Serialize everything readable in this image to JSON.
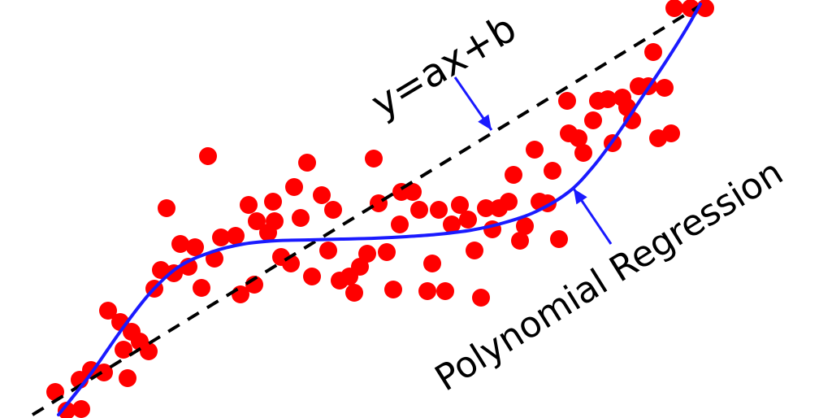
{
  "chart_data": {
    "type": "scatter",
    "title": "",
    "xlabel": "",
    "ylabel": "",
    "grid": false,
    "colors": {
      "points": "#ff0000",
      "linear_fit": "#000000",
      "polynomial_fit": "#1a1aff",
      "arrows": "#1a1aff",
      "text": "#000000"
    },
    "points": [
      [
        68,
        482
      ],
      [
        82,
        505
      ],
      [
        100,
        503
      ],
      [
        98,
        467
      ],
      [
        112,
        455
      ],
      [
        128,
        458
      ],
      [
        157,
        465
      ],
      [
        133,
        382
      ],
      [
        148,
        396
      ],
      [
        162,
        408
      ],
      [
        172,
        420
      ],
      [
        183,
        432
      ],
      [
        152,
        430
      ],
      [
        190,
        355
      ],
      [
        198,
        332
      ],
      [
        214,
        336
      ],
      [
        232,
        328
      ],
      [
        222,
        300
      ],
      [
        240,
        304
      ],
      [
        205,
        256
      ],
      [
        256,
        192
      ],
      [
        248,
        354
      ],
      [
        264,
        318
      ],
      [
        272,
        292
      ],
      [
        290,
        290
      ],
      [
        296,
        362
      ],
      [
        313,
        350
      ],
      [
        306,
        252
      ],
      [
        316,
        272
      ],
      [
        336,
        248
      ],
      [
        338,
        272
      ],
      [
        330,
        286
      ],
      [
        346,
        316
      ],
      [
        358,
        324
      ],
      [
        362,
        230
      ],
      [
        370,
        268
      ],
      [
        384,
        340
      ],
      [
        378,
        200
      ],
      [
        396,
        240
      ],
      [
        404,
        308
      ],
      [
        410,
        258
      ],
      [
        418,
        345
      ],
      [
        430,
        340
      ],
      [
        436,
        360
      ],
      [
        443,
        328
      ],
      [
        452,
        312
      ],
      [
        460,
        195
      ],
      [
        466,
        250
      ],
      [
        476,
        310
      ],
      [
        484,
        356
      ],
      [
        494,
        236
      ],
      [
        492,
        276
      ],
      [
        508,
        236
      ],
      [
        516,
        258
      ],
      [
        526,
        358
      ],
      [
        532,
        324
      ],
      [
        540,
        258
      ],
      [
        548,
        358
      ],
      [
        556,
        276
      ],
      [
        566,
        252
      ],
      [
        576,
        270
      ],
      [
        584,
        308
      ],
      [
        592,
        366
      ],
      [
        598,
        256
      ],
      [
        606,
        282
      ],
      [
        614,
        256
      ],
      [
        626,
        248
      ],
      [
        632,
        215
      ],
      [
        640,
        296
      ],
      [
        646,
        278
      ],
      [
        658,
        184
      ],
      [
        664,
        248
      ],
      [
        674,
        250
      ],
      [
        680,
        210
      ],
      [
        688,
        294
      ],
      [
        698,
        124
      ],
      [
        700,
        164
      ],
      [
        712,
        170
      ],
      [
        718,
        188
      ],
      [
        730,
        148
      ],
      [
        736,
        124
      ],
      [
        748,
        122
      ],
      [
        754,
        176
      ],
      [
        766,
        120
      ],
      [
        772,
        132
      ],
      [
        778,
        148
      ],
      [
        786,
        106
      ],
      [
        798,
        106
      ],
      [
        804,
        64
      ],
      [
        810,
        170
      ],
      [
        818,
        108
      ],
      [
        826,
        164
      ],
      [
        830,
        10
      ],
      [
        850,
        10
      ],
      [
        868,
        10
      ]
    ],
    "linear_fit": {
      "label": "y=ax+b",
      "start": [
        40,
        510
      ],
      "end": [
        860,
        8
      ]
    },
    "polynomial_fit": {
      "label": "Polynomial Regression",
      "points": [
        [
          72,
          510
        ],
        [
          110,
          462
        ],
        [
          150,
          405
        ],
        [
          185,
          360
        ],
        [
          220,
          328
        ],
        [
          260,
          310
        ],
        [
          300,
          300
        ],
        [
          340,
          296
        ],
        [
          380,
          295
        ],
        [
          420,
          294
        ],
        [
          460,
          293
        ],
        [
          500,
          291
        ],
        [
          540,
          288
        ],
        [
          580,
          283
        ],
        [
          620,
          274
        ],
        [
          660,
          260
        ],
        [
          700,
          236
        ],
        [
          730,
          205
        ],
        [
          760,
          165
        ],
        [
          790,
          120
        ],
        [
          820,
          75
        ],
        [
          845,
          35
        ],
        [
          862,
          5
        ]
      ]
    },
    "annotations": [
      {
        "text": "y=ax+b",
        "target": "linear_fit"
      },
      {
        "text": "Polynomial Regression",
        "target": "polynomial_fit"
      }
    ]
  }
}
